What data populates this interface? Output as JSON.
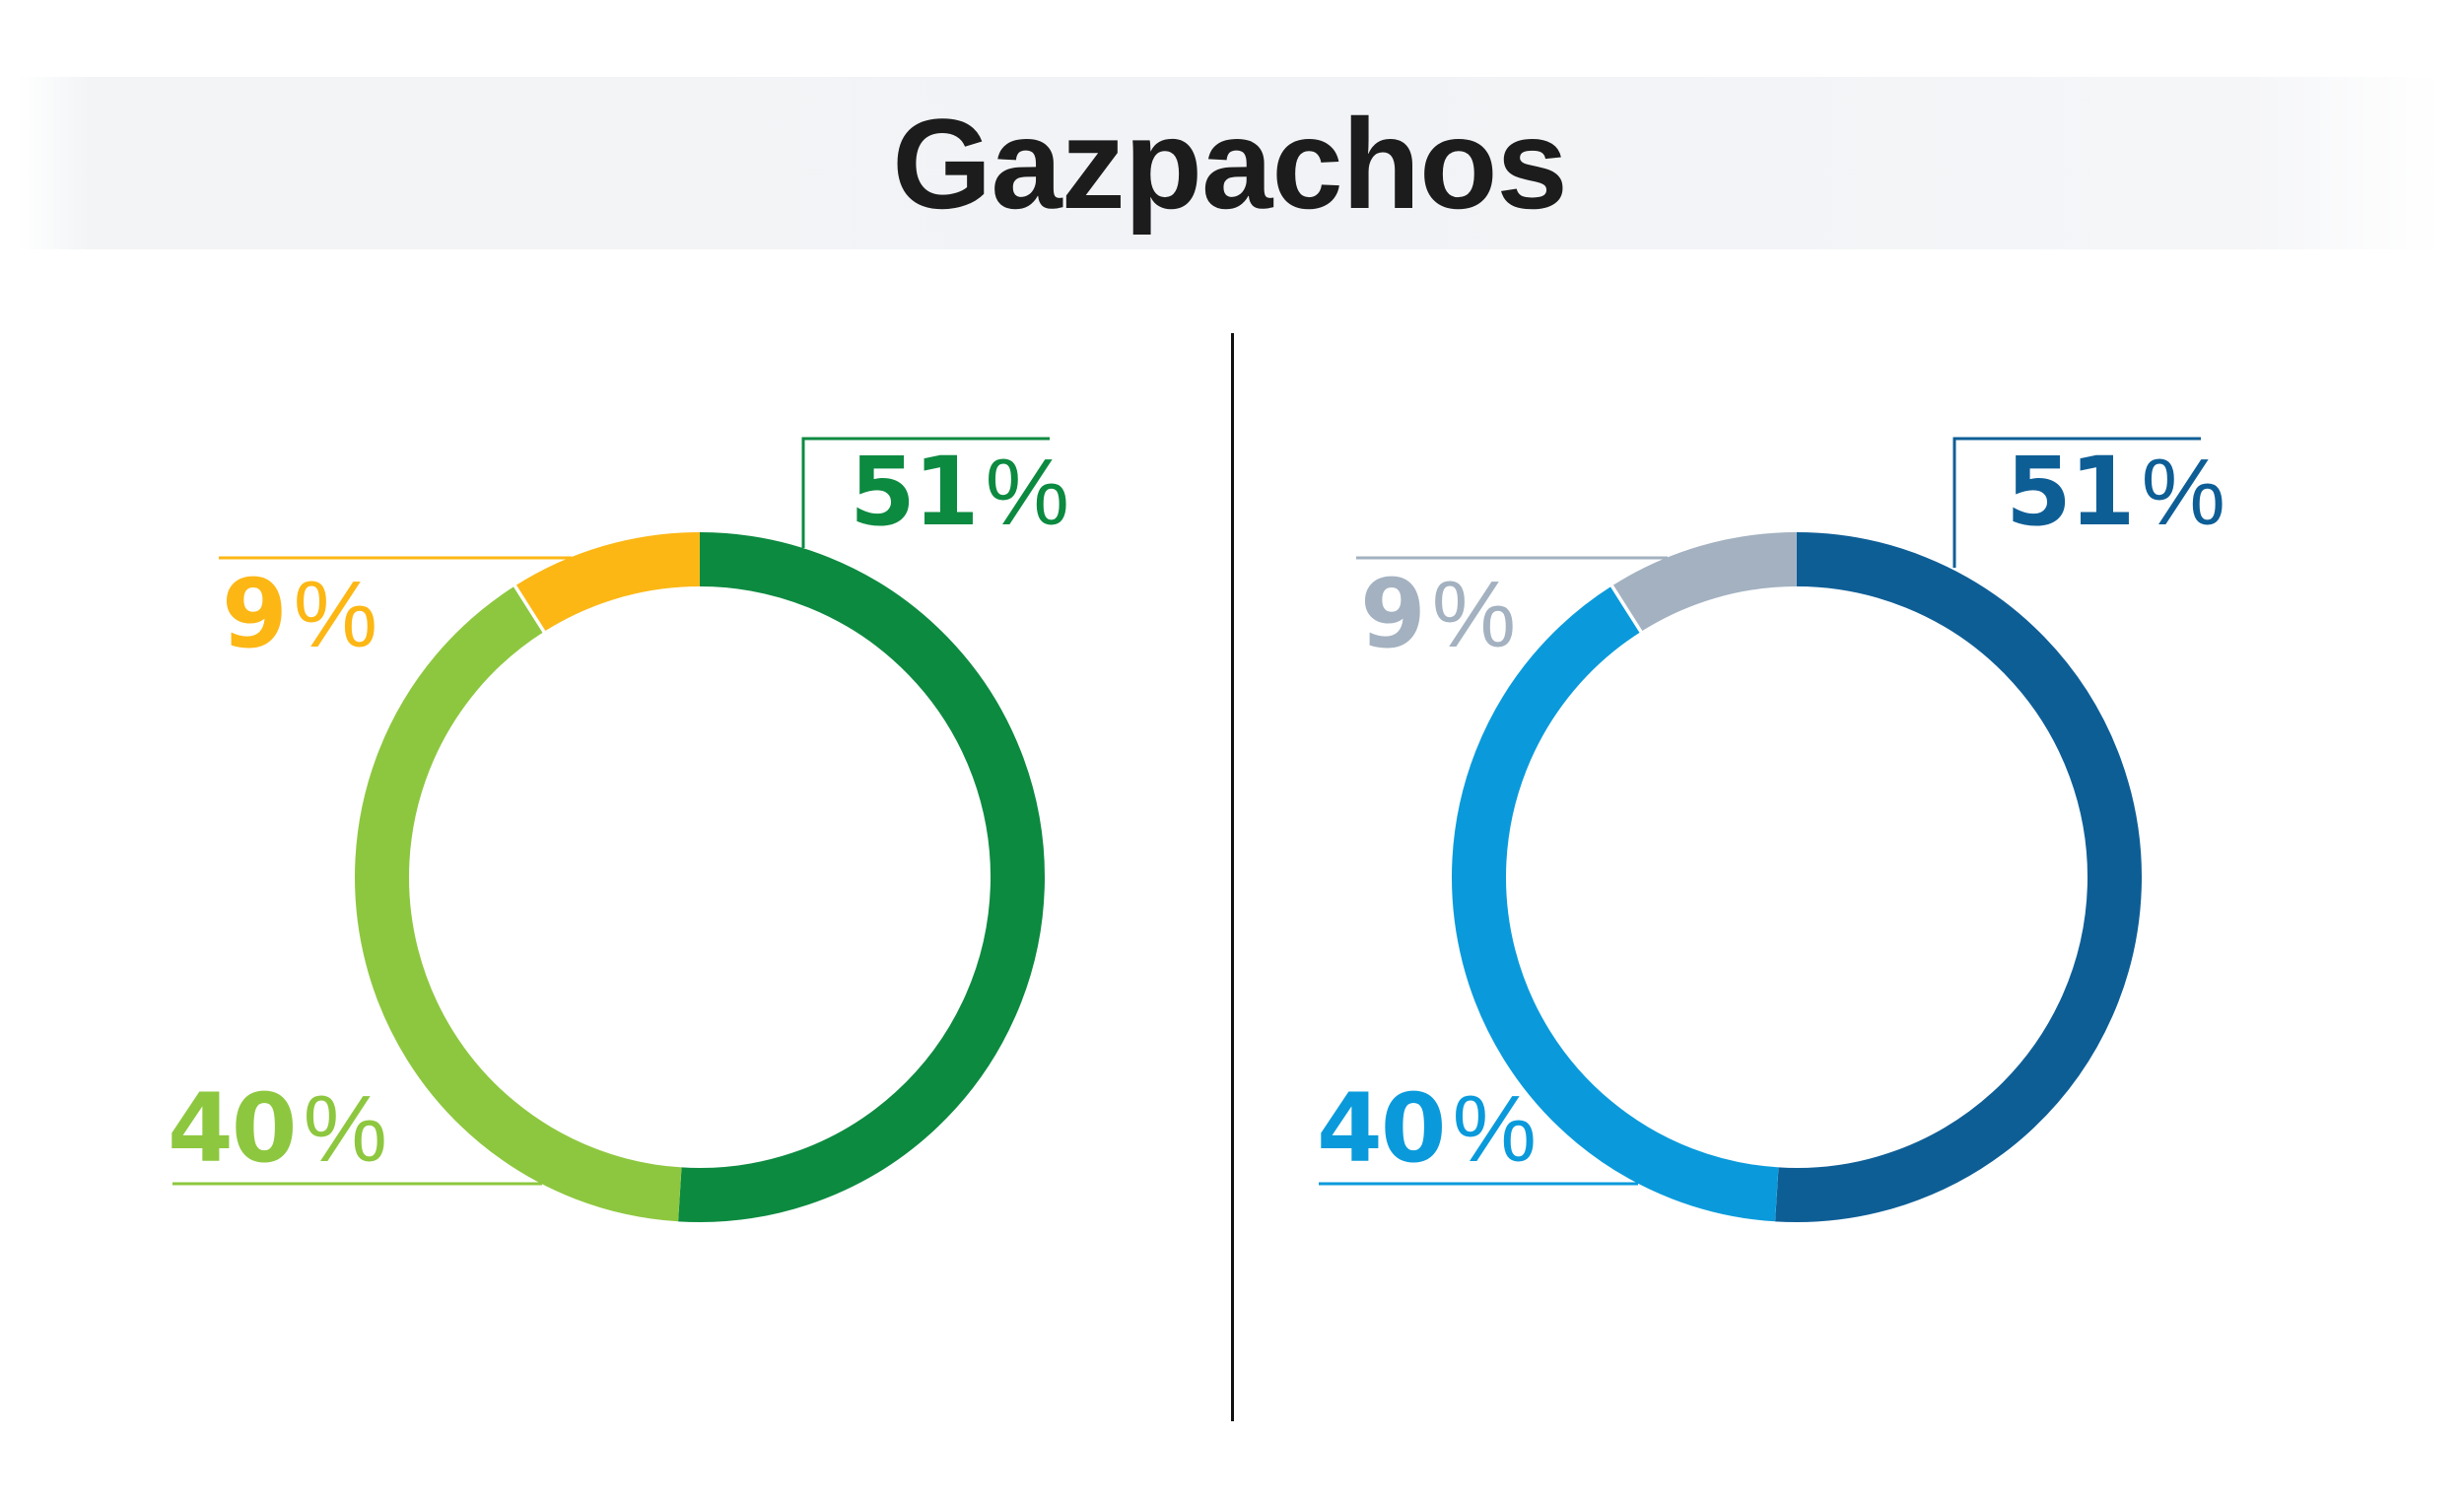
{
  "title": "Gazpachos",
  "banner": {
    "background": "#f1f3f6"
  },
  "divider_color": "#111111",
  "chart_data": [
    {
      "type": "pie",
      "subtype": "donut",
      "side": "left",
      "palette": "green",
      "direction": "clockwise",
      "start_angle_deg": 0,
      "segments": [
        {
          "label": "51%",
          "value": 51,
          "unit": "%",
          "color": "#0c8a40"
        },
        {
          "label": "40%",
          "value": 40,
          "unit": "%",
          "color": "#8dc73f"
        },
        {
          "label": "9%",
          "value": 9,
          "unit": "%",
          "color": "#fcb715"
        }
      ]
    },
    {
      "type": "pie",
      "subtype": "donut",
      "side": "right",
      "palette": "blue",
      "direction": "clockwise",
      "start_angle_deg": 0,
      "segments": [
        {
          "label": "51%",
          "value": 51,
          "unit": "%",
          "color": "#0e5e96"
        },
        {
          "label": "40%",
          "value": 40,
          "unit": "%",
          "color": "#0a9adb"
        },
        {
          "label": "9%",
          "value": 9,
          "unit": "%",
          "color": "#a3b1c0"
        }
      ]
    }
  ]
}
